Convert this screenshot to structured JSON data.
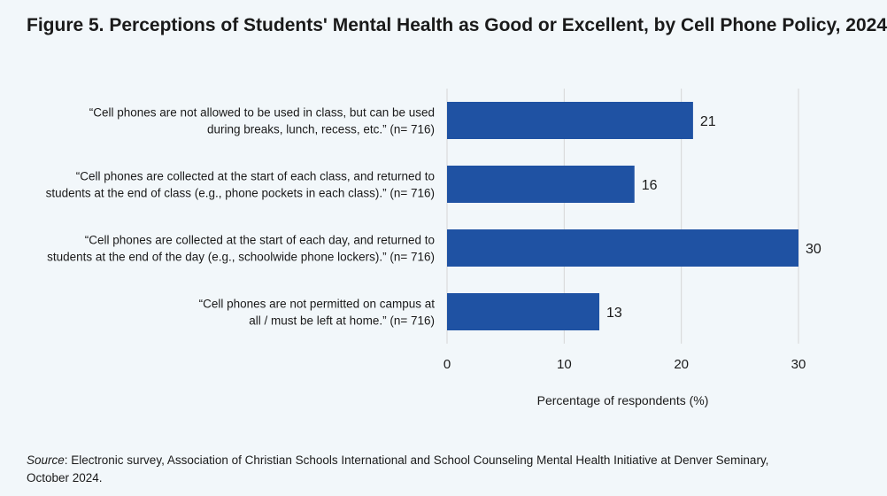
{
  "title": "Figure 5. Perceptions of Students' Mental Health as Good or Excellent, by Cell Phone Policy, 2024",
  "source": {
    "label": "Source",
    "text": ": Electronic survey, Association of Christian Schools International and School Counseling Mental Health Initiative at Denver Seminary, October 2024."
  },
  "colors": {
    "bar": "#1f52a3",
    "grid": "#d6d6d6",
    "background": "#f2f7fa"
  },
  "chart_data": {
    "type": "bar",
    "orientation": "horizontal",
    "categories": [
      [
        "“Cell phones are not allowed to be used in class, but can be used",
        "during breaks, lunch, recess, etc.” (n= 716)"
      ],
      [
        "“Cell phones are collected at the start of each class, and returned to",
        "students at the end of class (e.g., phone pockets in each class).” (n= 716)"
      ],
      [
        "“Cell phones are collected at the start of each day, and returned to",
        "students at the end of the day (e.g., schoolwide phone lockers).” (n= 716)"
      ],
      [
        "“Cell phones are not permitted on campus at",
        "all / must be left at home.” (n= 716)"
      ]
    ],
    "values": [
      21,
      16,
      30,
      13
    ],
    "data_labels": [
      "21",
      "16",
      "30",
      "13"
    ],
    "xlabel": "Percentage of respondents (%)",
    "xlim": [
      0,
      30
    ],
    "xticks": [
      0,
      10,
      20,
      30
    ],
    "grid": true
  }
}
